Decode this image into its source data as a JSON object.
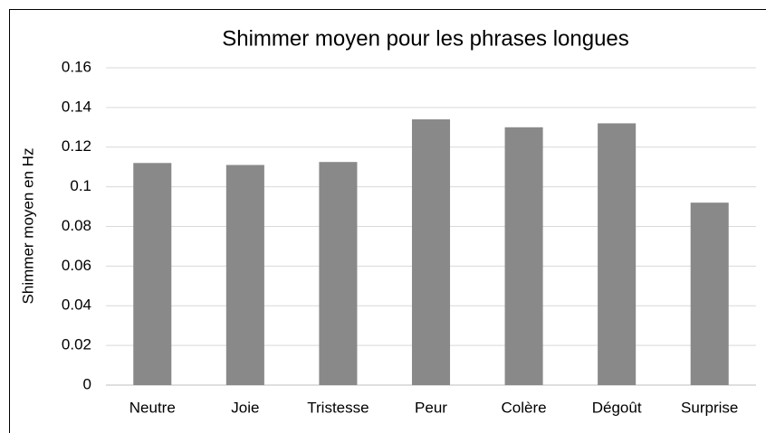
{
  "chart_data": {
    "type": "bar",
    "title": "Shimmer moyen pour les phrases longues",
    "y_label": "Shimmer moyen en Hz",
    "categories": [
      "Neutre",
      "Joie",
      "Tristesse",
      "Peur",
      "Colère",
      "Dégoût",
      "Surprise"
    ],
    "values": [
      0.112,
      0.111,
      0.1125,
      0.134,
      0.13,
      0.132,
      0.092
    ],
    "color": "#898989",
    "ylim": [
      0,
      0.16
    ],
    "yticks": [
      0,
      0.02,
      0.04,
      0.06,
      0.08,
      0.1,
      0.12,
      0.14,
      0.16
    ],
    "grid": true
  }
}
